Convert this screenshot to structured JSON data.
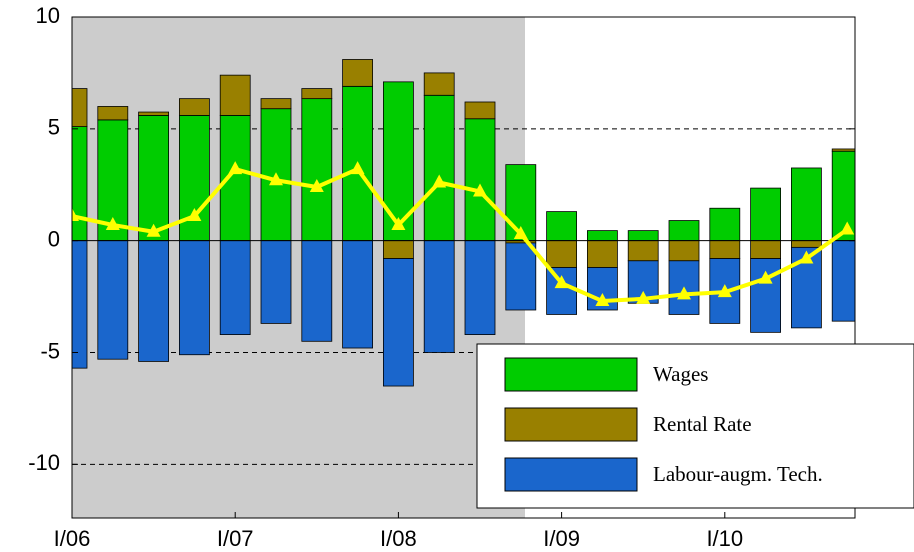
{
  "chart_data": {
    "type": "bar",
    "stacked": true,
    "categories": [
      "I/06",
      null,
      null,
      null,
      "I/07",
      null,
      null,
      null,
      "I/08",
      null,
      null,
      null,
      "I/09",
      null,
      null,
      null,
      "I/10",
      null,
      null,
      null
    ],
    "series": [
      {
        "name": "Wages",
        "color": "#00cc00",
        "values": [
          5.1,
          5.4,
          5.6,
          5.6,
          5.6,
          5.9,
          6.35,
          6.9,
          7.1,
          6.5,
          5.45,
          3.4,
          1.3,
          0.45,
          0.45,
          0.9,
          1.45,
          2.35,
          3.25,
          4.0
        ]
      },
      {
        "name": "Rental Rate",
        "color": "#998000",
        "values": [
          1.7,
          0.6,
          0.15,
          0.75,
          1.8,
          0.45,
          0.45,
          1.2,
          -0.8,
          1.0,
          0.75,
          -0.1,
          -1.2,
          -1.2,
          -0.9,
          -0.9,
          -0.8,
          -0.8,
          -0.3,
          0.1
        ]
      },
      {
        "name": "Labour-augm. Tech.",
        "color": "#1a66cc",
        "values": [
          -5.7,
          -5.3,
          -5.4,
          -5.1,
          -4.2,
          -3.7,
          -4.5,
          -4.8,
          -5.7,
          -5.0,
          -4.2,
          -3.0,
          -2.1,
          -1.9,
          -1.9,
          -2.4,
          -2.9,
          -3.3,
          -3.6,
          -3.6
        ]
      },
      {
        "type": "line",
        "color": "#ffff00",
        "values": [
          1.1,
          0.7,
          0.4,
          1.1,
          3.2,
          2.7,
          2.4,
          3.2,
          0.7,
          2.6,
          2.2,
          0.3,
          -1.9,
          -2.7,
          -2.6,
          -2.4,
          -2.3,
          -1.7,
          -0.8,
          0.5
        ]
      }
    ],
    "ylim": [
      -12.4,
      10
    ],
    "yticks": [
      -10,
      -5,
      0,
      5,
      10
    ],
    "grid": true,
    "legend": "lower right"
  }
}
